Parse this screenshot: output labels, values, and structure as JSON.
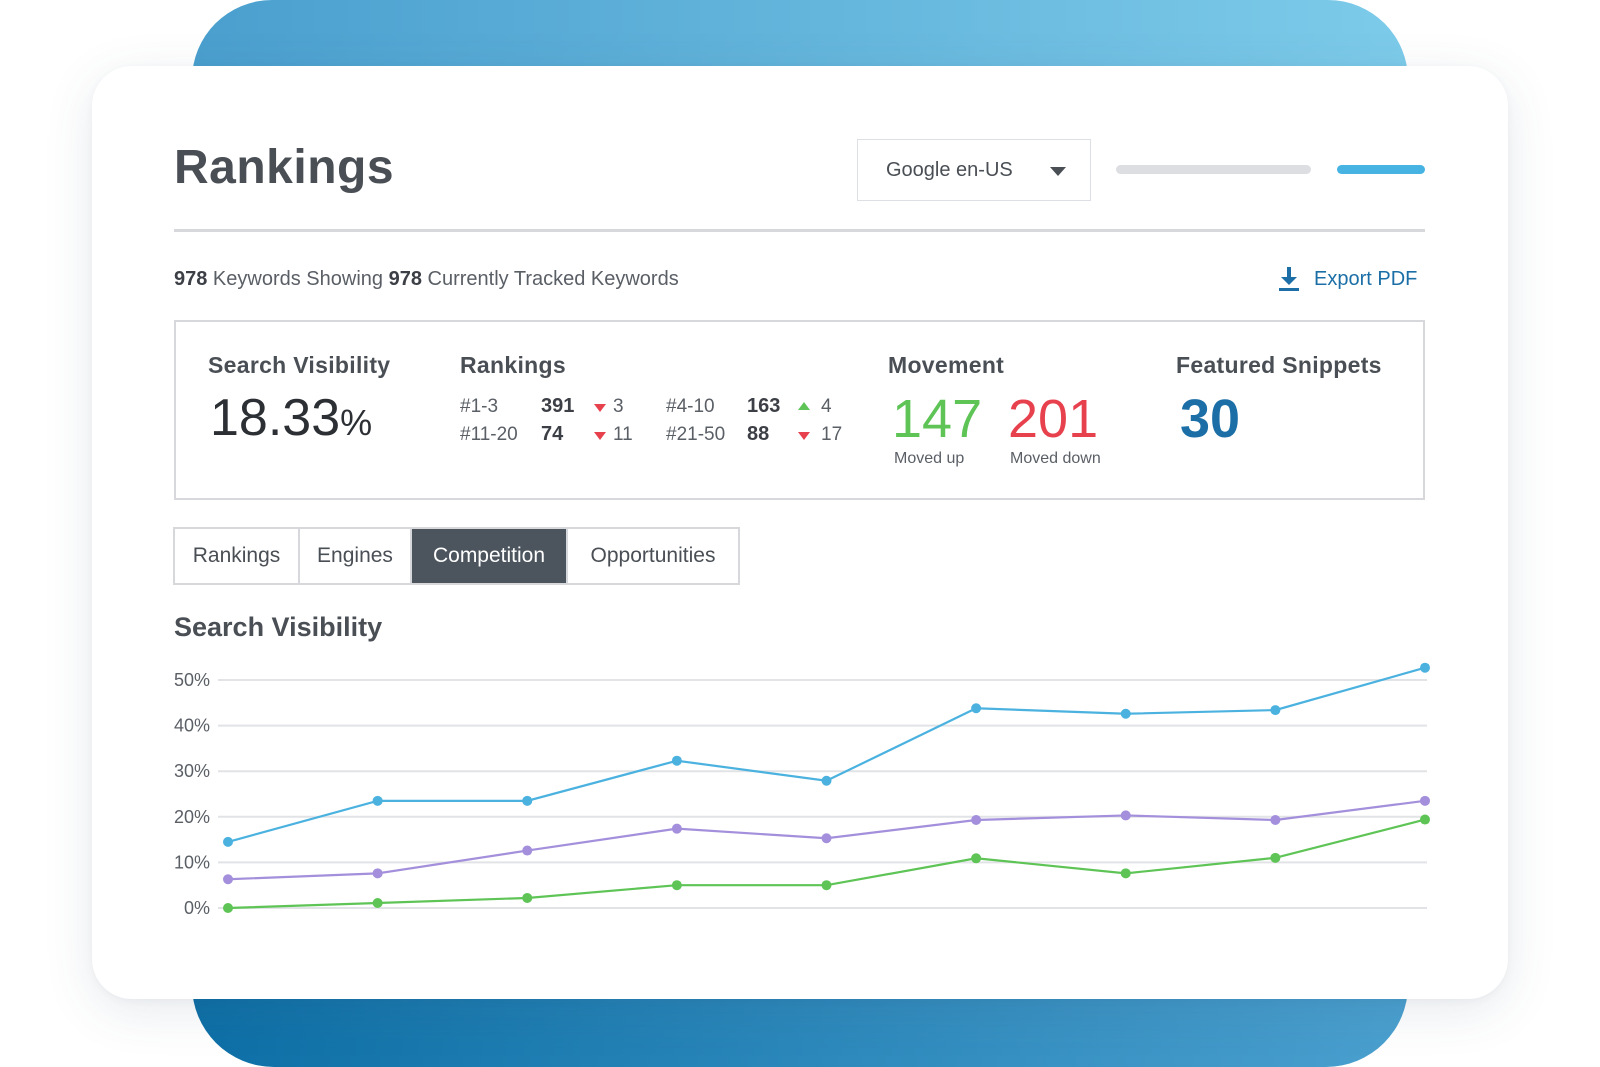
{
  "header": {
    "title": "Rankings",
    "engine_select": "Google en-US"
  },
  "summary": {
    "count_a": "978",
    "text_a": " Keywords Showing ",
    "count_b": "978",
    "text_b": " Currently Tracked Keywords",
    "export_label": "Export PDF"
  },
  "stats": {
    "search_visibility": {
      "label": "Search Visibility",
      "value": "18.33",
      "unit": "%"
    },
    "rankings": {
      "label": "Rankings",
      "rows": [
        {
          "range": "#1-3",
          "count": "391",
          "direction": "down",
          "delta": "3"
        },
        {
          "range": "#4-10",
          "count": "163",
          "direction": "up",
          "delta": "4"
        },
        {
          "range": "#11-20",
          "count": "74",
          "direction": "down",
          "delta": "11"
        },
        {
          "range": "#21-50",
          "count": "88",
          "direction": "down",
          "delta": "17"
        }
      ]
    },
    "movement": {
      "label": "Movement",
      "up_value": "147",
      "up_caption": "Moved up",
      "down_value": "201",
      "down_caption": "Moved down"
    },
    "featured_snippets": {
      "label": "Featured Snippets",
      "value": "30"
    }
  },
  "tabs": [
    {
      "label": "Rankings",
      "active": false
    },
    {
      "label": "Engines",
      "active": false
    },
    {
      "label": "Competition",
      "active": true
    },
    {
      "label": "Opportunities",
      "active": false
    }
  ],
  "chart_section_title": "Search Visibility",
  "colors": {
    "blue_series": "#4bb2e0",
    "purple_series": "#a38fdb",
    "green_series": "#5ec456",
    "up": "#5ec456",
    "down": "#e8414e",
    "accent": "#1b6fa6"
  },
  "chart_data": {
    "type": "line",
    "title": "Search Visibility",
    "xlabel": "",
    "ylabel": "",
    "ylim": [
      0,
      50
    ],
    "yticks": [
      "50%",
      "40%",
      "30%",
      "20%",
      "10%",
      "0%"
    ],
    "grid": true,
    "x": [
      1,
      2,
      3,
      4,
      5,
      6,
      7,
      8,
      9
    ],
    "series": [
      {
        "color": "#4bb2e0",
        "values": [
          14.5,
          23.5,
          23.5,
          32.3,
          27.9,
          43.8,
          42.6,
          43.4,
          52.7
        ]
      },
      {
        "color": "#a38fdb",
        "values": [
          6.3,
          7.6,
          12.6,
          17.4,
          15.3,
          19.3,
          20.3,
          19.3,
          23.5
        ]
      },
      {
        "color": "#5ec456",
        "values": [
          0,
          1.1,
          2.2,
          5.0,
          5.0,
          10.9,
          7.6,
          11.0,
          19.4
        ]
      }
    ]
  }
}
